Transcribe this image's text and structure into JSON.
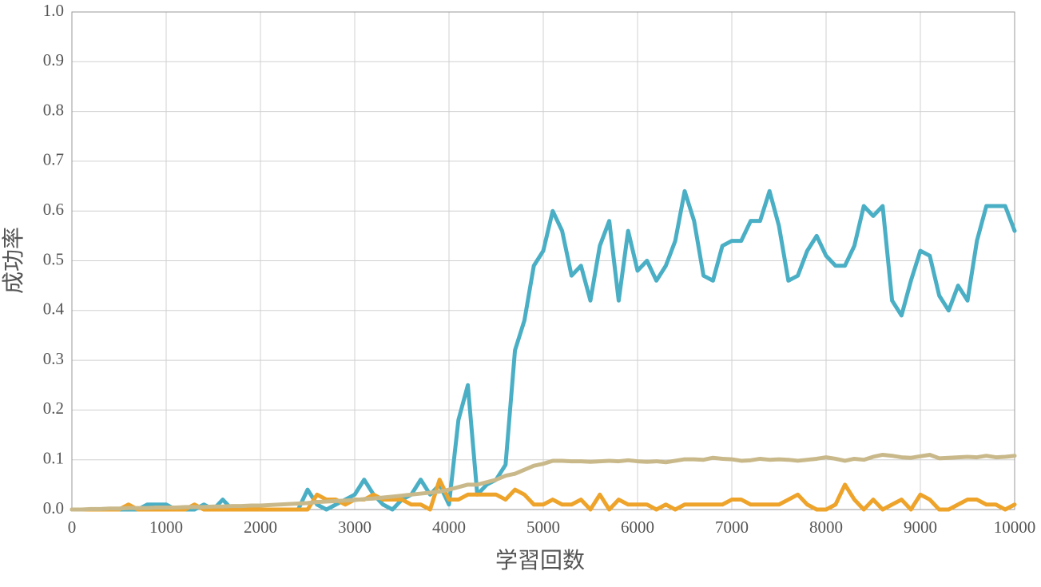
{
  "chart_data": {
    "type": "line",
    "xlabel": "学習回数",
    "ylabel": "成功率",
    "x": [
      0,
      100,
      200,
      300,
      400,
      500,
      600,
      700,
      800,
      900,
      1000,
      1100,
      1200,
      1300,
      1400,
      1500,
      1600,
      1700,
      1800,
      1900,
      2000,
      2100,
      2200,
      2300,
      2400,
      2500,
      2600,
      2700,
      2800,
      2900,
      3000,
      3100,
      3200,
      3300,
      3400,
      3500,
      3600,
      3700,
      3800,
      3900,
      4000,
      4100,
      4200,
      4300,
      4400,
      4500,
      4600,
      4700,
      4800,
      4900,
      5000,
      5100,
      5200,
      5300,
      5400,
      5500,
      5600,
      5700,
      5800,
      5900,
      6000,
      6100,
      6200,
      6300,
      6400,
      6500,
      6600,
      6700,
      6800,
      6900,
      7000,
      7100,
      7200,
      7300,
      7400,
      7500,
      7600,
      7700,
      7800,
      7900,
      8000,
      8100,
      8200,
      8300,
      8400,
      8500,
      8600,
      8700,
      8800,
      8900,
      9000,
      9100,
      9200,
      9300,
      9400,
      9500,
      9600,
      9700,
      9800,
      9900,
      10000
    ],
    "series": [
      {
        "color": "#4aafc5",
        "values": [
          0,
          0,
          0,
          0,
          0,
          0,
          0,
          0,
          0.01,
          0.01,
          0.01,
          0,
          0,
          0,
          0.01,
          0,
          0.02,
          0,
          0,
          0,
          0,
          0,
          0,
          0,
          0,
          0.04,
          0.01,
          0,
          0.01,
          0.02,
          0.03,
          0.06,
          0.03,
          0.01,
          0,
          0.02,
          0.03,
          0.06,
          0.03,
          0.05,
          0.01,
          0.18,
          0.25,
          0.03,
          0.05,
          0.06,
          0.09,
          0.32,
          0.38,
          0.49,
          0.52,
          0.6,
          0.56,
          0.47,
          0.49,
          0.42,
          0.53,
          0.58,
          0.42,
          0.56,
          0.48,
          0.5,
          0.46,
          0.49,
          0.54,
          0.64,
          0.58,
          0.47,
          0.46,
          0.53,
          0.54,
          0.54,
          0.58,
          0.58,
          0.64,
          0.57,
          0.46,
          0.47,
          0.52,
          0.55,
          0.51,
          0.49,
          0.49,
          0.53,
          0.61,
          0.59,
          0.61,
          0.42,
          0.39,
          0.46,
          0.52,
          0.51,
          0.43,
          0.4,
          0.45,
          0.42,
          0.54,
          0.61,
          0.61,
          0.61,
          0.56
        ]
      },
      {
        "color": "#eea32a",
        "values": [
          0,
          0,
          0,
          0,
          0,
          0,
          0.01,
          0,
          0,
          0,
          0,
          0,
          0,
          0.01,
          0,
          0,
          0,
          0,
          0,
          0,
          0,
          0,
          0,
          0,
          0,
          0,
          0.03,
          0.02,
          0.02,
          0.01,
          0.02,
          0.02,
          0.03,
          0.02,
          0.02,
          0.02,
          0.01,
          0.01,
          0,
          0.06,
          0.02,
          0.02,
          0.03,
          0.03,
          0.03,
          0.03,
          0.02,
          0.04,
          0.03,
          0.01,
          0.01,
          0.02,
          0.01,
          0.01,
          0.02,
          0,
          0.03,
          0,
          0.02,
          0.01,
          0.01,
          0.01,
          0,
          0.01,
          0,
          0.01,
          0.01,
          0.01,
          0.01,
          0.01,
          0.02,
          0.02,
          0.01,
          0.01,
          0.01,
          0.01,
          0.02,
          0.03,
          0.01,
          0,
          0,
          0.01,
          0.05,
          0.02,
          0,
          0.02,
          0,
          0.01,
          0.02,
          0,
          0.03,
          0.02,
          0,
          0,
          0.01,
          0.02,
          0.02,
          0.01,
          0.01,
          0,
          0.01
        ]
      },
      {
        "color": "#c9b98a",
        "values": [
          0,
          0,
          0.001,
          0.001,
          0.002,
          0.002,
          0.003,
          0.003,
          0.003,
          0.004,
          0.004,
          0.004,
          0.005,
          0.005,
          0.005,
          0.006,
          0.006,
          0.007,
          0.007,
          0.008,
          0.008,
          0.009,
          0.01,
          0.011,
          0.012,
          0.013,
          0.015,
          0.016,
          0.017,
          0.018,
          0.019,
          0.021,
          0.022,
          0.024,
          0.026,
          0.028,
          0.03,
          0.032,
          0.034,
          0.036,
          0.04,
          0.045,
          0.05,
          0.05,
          0.055,
          0.06,
          0.068,
          0.072,
          0.08,
          0.088,
          0.092,
          0.098,
          0.098,
          0.097,
          0.097,
          0.096,
          0.097,
          0.098,
          0.097,
          0.099,
          0.097,
          0.096,
          0.097,
          0.095,
          0.098,
          0.101,
          0.101,
          0.1,
          0.104,
          0.102,
          0.101,
          0.098,
          0.099,
          0.102,
          0.1,
          0.101,
          0.1,
          0.098,
          0.1,
          0.102,
          0.105,
          0.102,
          0.098,
          0.102,
          0.1,
          0.106,
          0.11,
          0.108,
          0.105,
          0.104,
          0.107,
          0.11,
          0.103,
          0.104,
          0.105,
          0.106,
          0.105,
          0.108,
          0.105,
          0.106,
          0.108
        ]
      }
    ],
    "xlim": [
      0,
      10000
    ],
    "xticks": [
      0,
      1000,
      2000,
      3000,
      4000,
      5000,
      6000,
      7000,
      8000,
      9000,
      10000
    ],
    "ylim": [
      0,
      1
    ],
    "yticks": [
      {
        "value": 0,
        "label": "0.0"
      },
      0.1,
      0.2,
      0.3,
      0.4,
      0.5,
      0.6,
      0.7,
      0.8,
      0.9,
      {
        "value": 1,
        "label": "1.0"
      }
    ],
    "grid": true
  }
}
